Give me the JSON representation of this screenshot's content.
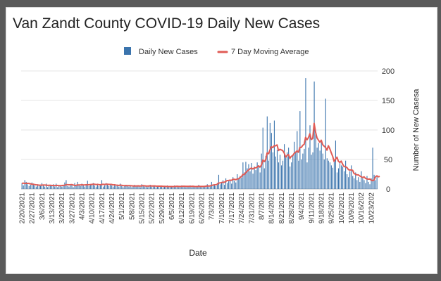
{
  "chart_data": {
    "type": "bar",
    "title": "Van Zandt County COVID-19 Daily New Cases",
    "xlabel": "Date",
    "ylabel": "Number of New Casesa",
    "ylim": [
      0,
      200
    ],
    "yticks": [
      0,
      50,
      100,
      150,
      200
    ],
    "y_axis_side": "right",
    "grid": true,
    "legend": "top-center",
    "x_tick_labels": [
      "2/20/2021",
      "2/27/2021",
      "3/6/2021",
      "3/13/2021",
      "3/20/2021",
      "3/27/2021",
      "4/3/2021",
      "4/10/2021",
      "4/17/2021",
      "4/24/2021",
      "5/1/2021",
      "5/8/2021",
      "5/15/2021",
      "5/22/2021",
      "5/29/2021",
      "6/5/2021",
      "6/12/2021",
      "6/19/2021",
      "6/26/2021",
      "7/3/2021",
      "7/10/2021",
      "7/17/2021",
      "7/24/2021",
      "7/31/2021",
      "8/7/2021",
      "8/14/2021",
      "8/21/2021",
      "8/28/2021",
      "9/4/2021",
      "9/11/2021",
      "9/18/2021",
      "9/25/2021",
      "10/2/2021",
      "10/9/2021",
      "10/16/202",
      "10/23/202"
    ],
    "series": [
      {
        "name": "Daily New Cases",
        "kind": "bar",
        "color": "#3b74ad",
        "values": [
          10,
          6,
          15,
          12,
          8,
          5,
          7,
          11,
          9,
          6,
          4,
          8,
          7,
          5,
          10,
          6,
          4,
          9,
          3,
          7,
          6,
          5,
          8,
          4,
          9,
          3,
          6,
          5,
          4,
          7,
          11,
          15,
          5,
          4,
          6,
          8,
          3,
          10,
          5,
          12,
          6,
          5,
          9,
          7,
          4,
          6,
          14,
          5,
          8,
          7,
          10,
          6,
          4,
          9,
          5,
          7,
          15,
          4,
          6,
          10,
          7,
          5,
          8,
          6,
          4,
          7,
          5,
          6,
          4,
          9,
          5,
          3,
          6,
          7,
          5,
          4,
          6,
          3,
          5,
          7,
          4,
          6,
          5,
          3,
          8,
          5,
          4,
          6,
          3,
          5,
          7,
          4,
          6,
          5,
          3,
          4,
          6,
          5,
          4,
          3,
          5,
          4,
          6,
          3,
          5,
          4,
          3,
          6,
          4,
          5,
          3,
          4,
          6,
          5,
          4,
          3,
          5,
          4,
          6,
          3,
          5,
          4,
          3,
          5,
          7,
          4,
          3,
          5,
          4,
          6,
          8,
          4,
          5,
          12,
          6,
          8,
          5,
          10,
          24,
          8,
          12,
          15,
          7,
          18,
          10,
          13,
          16,
          9,
          20,
          14,
          11,
          25,
          17,
          22,
          19,
          45,
          28,
          46,
          35,
          42,
          30,
          44,
          26,
          38,
          32,
          45,
          40,
          28,
          60,
          104,
          35,
          56,
          123,
          48,
          112,
          95,
          62,
          116,
          55,
          66,
          45,
          58,
          40,
          48,
          76,
          55,
          62,
          70,
          38,
          45,
          58,
          80,
          62,
          98,
          48,
          132,
          50,
          60,
          68,
          188,
          45,
          70,
          108,
          58,
          62,
          182,
          95,
          70,
          78,
          65,
          82,
          60,
          50,
          153,
          52,
          48,
          45,
          40,
          36,
          50,
          82,
          28,
          35,
          45,
          40,
          38,
          30,
          48,
          25,
          20,
          30,
          40,
          22,
          18,
          28,
          15,
          20,
          12,
          30,
          18,
          15,
          10,
          22,
          12,
          8,
          18,
          70,
          24,
          15,
          20
        ]
      },
      {
        "name": "7 Day Moving Average",
        "kind": "line",
        "color": "#e05b55",
        "values": [
          9.4,
          9.9,
          9.4,
          9.6,
          9.6,
          9.4,
          8.8,
          8.1,
          8.1,
          7.5,
          7.1,
          6.9,
          6.6,
          6.4,
          6.6,
          6.7,
          6.7,
          6.5,
          6.1,
          6.3,
          6.3,
          6.0,
          6.0,
          5.7,
          5.9,
          5.9,
          5.6,
          5.7,
          5.8,
          6.1,
          6.3,
          7.3,
          7.3,
          7.2,
          7.3,
          7.5,
          6.8,
          6.1,
          6.0,
          6.9,
          6.9,
          6.9,
          7.2,
          7.0,
          6.9,
          7.2,
          7.3,
          7.1,
          7.4,
          7.7,
          8.1,
          8.1,
          7.5,
          7.7,
          7.4,
          7.0,
          7.8,
          7.9,
          7.6,
          8.1,
          8.1,
          7.8,
          7.8,
          7.7,
          7.0,
          7.1,
          6.6,
          6.4,
          6.0,
          6.5,
          6.3,
          5.7,
          5.6,
          5.8,
          5.7,
          5.6,
          5.6,
          5.3,
          5.2,
          5.1,
          5.1,
          5.2,
          5.3,
          4.9,
          5.4,
          5.6,
          5.3,
          5.0,
          4.9,
          5.1,
          5.3,
          5.1,
          5.1,
          5.2,
          4.9,
          4.8,
          4.7,
          4.7,
          4.7,
          4.4,
          4.4,
          4.3,
          4.3,
          4.1,
          4.1,
          4.1,
          4.0,
          4.3,
          4.4,
          4.6,
          4.3,
          4.3,
          4.4,
          4.6,
          4.6,
          4.4,
          4.4,
          4.4,
          4.5,
          4.4,
          4.6,
          4.3,
          4.1,
          4.2,
          4.4,
          4.3,
          4.3,
          4.3,
          4.4,
          4.6,
          5.2,
          5.0,
          5.1,
          6.0,
          6.6,
          7.0,
          7.1,
          7.9,
          10.1,
          10.2,
          10.8,
          11.5,
          11.3,
          13.0,
          14.3,
          14.4,
          14.9,
          14.6,
          16.4,
          16.4,
          15.8,
          16.7,
          17.4,
          19.3,
          20.8,
          24.7,
          24.3,
          27.5,
          30.1,
          32.1,
          34.1,
          35.6,
          33.8,
          35.7,
          35.9,
          37.1,
          39.3,
          37.1,
          40.4,
          49.1,
          46.3,
          49.4,
          61.1,
          59.7,
          66.0,
          71.6,
          70.1,
          73.4,
          73.1,
          74.7,
          65.2,
          67.2,
          66.2,
          64.9,
          60.9,
          53.9,
          56.9,
          58.4,
          52.0,
          55.3,
          56.8,
          60.3,
          62.1,
          64.7,
          62.2,
          70.6,
          70.4,
          74.0,
          75.7,
          87.7,
          83.4,
          87.1,
          93.6,
          83.9,
          85.6,
          111.3,
          96.3,
          86.6,
          82.9,
          79.2,
          82.7,
          75.1,
          72.6,
          70.3,
          65.8,
          73.3,
          68.1,
          61.3,
          55.4,
          46.6,
          50.6,
          53.9,
          47.0,
          44.9,
          47.3,
          41.9,
          37.9,
          37.6,
          36.3,
          33.0,
          31.9,
          32.4,
          31.6,
          26.1,
          25.1,
          23.9,
          24.0,
          22.0,
          20.8,
          19.3,
          20.6,
          18.0,
          17.1,
          16.6,
          16.8,
          15.1,
          14.0,
          15.0,
          20.6,
          22.3,
          20.6,
          21.4
        ]
      }
    ]
  }
}
